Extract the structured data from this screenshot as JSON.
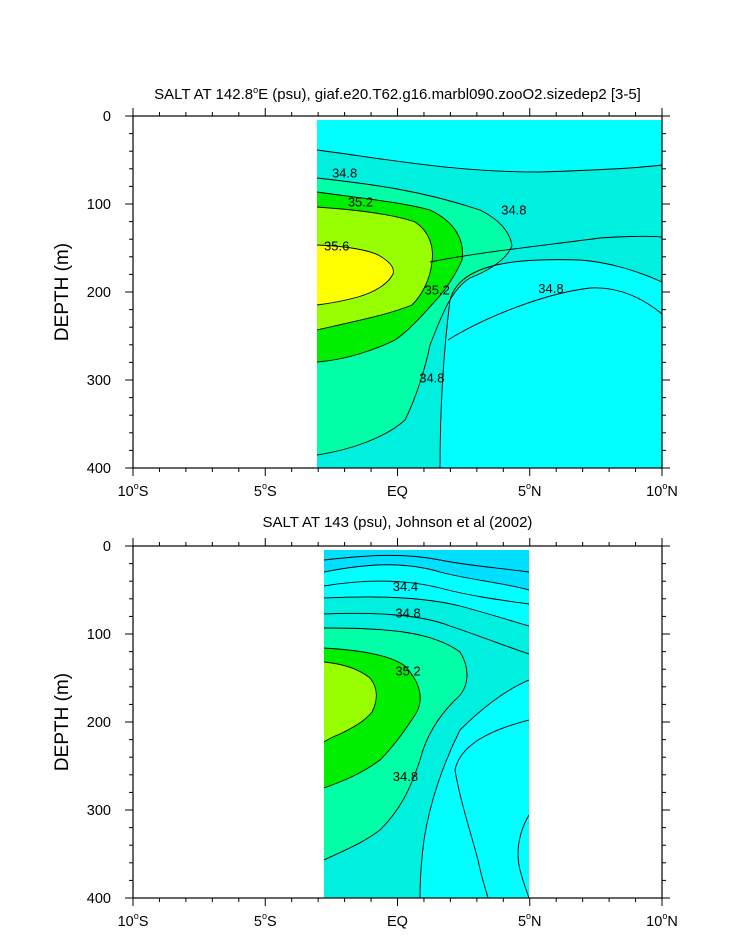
{
  "chart_data": [
    {
      "type": "contour",
      "title": "SALT AT 142.8°E (psu), giaf.e20.T62.g16.marbl090.zooO2.sizedep2 [3-5]",
      "title_parts": [
        "SALT AT 142.8",
        "o",
        "E (psu), giaf.e20.T62.g16.marbl090.zooO2.sizedep2 [3-5]"
      ],
      "xlabel": "",
      "ylabel": "DEPTH (m)",
      "xlim": [
        -10,
        10
      ],
      "ylim": [
        400,
        0
      ],
      "x_ticks": [
        {
          "value": -10,
          "num": "10",
          "deg": "o",
          "hem": "S"
        },
        {
          "value": -5,
          "num": "5",
          "deg": "o",
          "hem": "S"
        },
        {
          "value": 0,
          "num": "EQ",
          "deg": "",
          "hem": ""
        },
        {
          "value": 5,
          "num": "5",
          "deg": "o",
          "hem": "N"
        },
        {
          "value": 10,
          "num": "10",
          "deg": "o",
          "hem": "N"
        }
      ],
      "y_ticks": [
        0,
        100,
        200,
        300,
        400
      ],
      "data_extent": {
        "x": [
          -3.1,
          10
        ],
        "y": [
          4,
          400
        ]
      },
      "filled_levels": [
        {
          "min": null,
          "max": 34.8,
          "color": "#00ffff"
        },
        {
          "min": 34.8,
          "max": 35.0,
          "color": "#00f0e0"
        },
        {
          "min": 35.0,
          "max": 35.2,
          "color": "#00ffa6"
        },
        {
          "min": 35.2,
          "max": 35.4,
          "color": "#00ee00"
        },
        {
          "min": 35.4,
          "max": 35.6,
          "color": "#97ff00"
        },
        {
          "min": 35.6,
          "max": null,
          "color": "#ffff00"
        }
      ],
      "contour_labels": [
        {
          "text": "34.8",
          "x": -2.0,
          "y": 65
        },
        {
          "text": "35.2",
          "x": -1.4,
          "y": 98
        },
        {
          "text": "34.8",
          "x": 4.4,
          "y": 107
        },
        {
          "text": "35.6",
          "x": -2.3,
          "y": 148
        },
        {
          "text": "34.8",
          "x": 5.8,
          "y": 196
        },
        {
          "text": "35.2",
          "x": 1.5,
          "y": 198
        },
        {
          "text": "34.8",
          "x": 1.3,
          "y": 298
        }
      ]
    },
    {
      "type": "contour",
      "title": "SALT AT 143 (psu), Johnson et al (2002)",
      "xlabel": "",
      "ylabel": "DEPTH (m)",
      "xlim": [
        -10,
        10
      ],
      "ylim": [
        400,
        0
      ],
      "x_ticks": [
        {
          "value": -10,
          "num": "10",
          "deg": "o",
          "hem": "S"
        },
        {
          "value": -5,
          "num": "5",
          "deg": "o",
          "hem": "S"
        },
        {
          "value": 0,
          "num": "EQ",
          "deg": "",
          "hem": ""
        },
        {
          "value": 5,
          "num": "5",
          "deg": "o",
          "hem": "N"
        },
        {
          "value": 10,
          "num": "10",
          "deg": "o",
          "hem": "N"
        }
      ],
      "y_ticks": [
        0,
        100,
        200,
        300,
        400
      ],
      "data_extent": {
        "x": [
          -2.8,
          5
        ],
        "y": [
          4,
          400
        ]
      },
      "filled_levels": [
        {
          "min": null,
          "max": 34.2,
          "color": "#00dfff"
        },
        {
          "min": 34.2,
          "max": 34.6,
          "color": "#00ffff"
        },
        {
          "min": 34.6,
          "max": 34.8,
          "color": "#00f0e0"
        },
        {
          "min": 34.8,
          "max": 35.0,
          "color": "#00ffa6"
        },
        {
          "min": 35.0,
          "max": 35.2,
          "color": "#00ee00"
        },
        {
          "min": 35.2,
          "max": null,
          "color": "#97ff00"
        }
      ],
      "contour_labels": [
        {
          "text": "34.4",
          "x": 0.3,
          "y": 46
        },
        {
          "text": "34.8",
          "x": 0.4,
          "y": 76
        },
        {
          "text": "35.2",
          "x": 0.4,
          "y": 142
        },
        {
          "text": "34.8",
          "x": 0.3,
          "y": 262
        }
      ]
    }
  ]
}
